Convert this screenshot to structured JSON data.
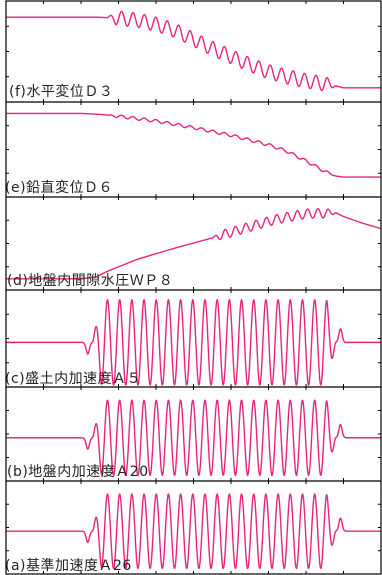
{
  "chart_data": [
    {
      "type": "line",
      "panel": "f",
      "label": "(f)水平変位Ｄ３",
      "color": "#e8247c",
      "series": [
        {
          "x": [
            0,
            0.05,
            0.1,
            0.15,
            0.2,
            0.24,
            0.3,
            0.35,
            0.4,
            0.45,
            0.5,
            0.55,
            0.6,
            0.65,
            0.7,
            0.75,
            0.8,
            0.85,
            0.88,
            0.9,
            1.0
          ],
          "values": [
            0.84,
            0.84,
            0.84,
            0.84,
            0.84,
            0.84,
            0.83,
            0.81,
            0.77,
            0.71,
            0.62,
            0.53,
            0.45,
            0.37,
            0.3,
            0.25,
            0.21,
            0.18,
            0.16,
            0.14,
            0.14
          ],
          "osc_amp": 0.07,
          "osc_from": 0.27,
          "osc_to": 0.88,
          "osc_cycles": 20
        }
      ]
    },
    {
      "type": "line",
      "panel": "e",
      "label": "(e)鉛直変位Ｄ６",
      "color": "#e8247c",
      "series": [
        {
          "x": [
            0,
            0.1,
            0.2,
            0.25,
            0.3,
            0.4,
            0.5,
            0.6,
            0.7,
            0.75,
            0.8,
            0.85,
            0.88,
            0.9,
            1.0
          ],
          "values": [
            0.88,
            0.88,
            0.88,
            0.87,
            0.85,
            0.8,
            0.73,
            0.65,
            0.55,
            0.48,
            0.38,
            0.27,
            0.22,
            0.21,
            0.21
          ],
          "osc_amp": 0.015,
          "osc_from": 0.27,
          "osc_to": 0.88,
          "osc_cycles": 20
        }
      ]
    },
    {
      "type": "line",
      "panel": "d",
      "label": "(d)地盤内間隙水圧ＷＰ８",
      "color": "#e8247c",
      "series": [
        {
          "x": [
            0,
            0.2,
            0.24,
            0.27,
            0.35,
            0.45,
            0.55,
            0.65,
            0.72,
            0.8,
            0.88,
            0.9,
            0.95,
            1.0
          ],
          "values": [
            0.12,
            0.12,
            0.14,
            0.2,
            0.33,
            0.45,
            0.56,
            0.68,
            0.76,
            0.82,
            0.83,
            0.79,
            0.72,
            0.66
          ],
          "osc_amp": 0.05,
          "osc_from": 0.55,
          "osc_to": 0.88,
          "osc_cycles": 12
        }
      ]
    },
    {
      "type": "line",
      "panel": "c",
      "label": "(c)盛土内加速度Ａ５",
      "color": "#e8247c",
      "series": [
        {
          "baseline": 0.46,
          "osc_amp": 0.44,
          "osc_from": 0.23,
          "osc_to": 0.88,
          "osc_cycles": 20
        }
      ]
    },
    {
      "type": "line",
      "panel": "b",
      "label": "(b)地盤内加速度Ａ20",
      "color": "#e8247c",
      "series": [
        {
          "baseline": 0.46,
          "osc_amp": 0.4,
          "osc_from": 0.23,
          "osc_to": 0.88,
          "osc_cycles": 20
        }
      ]
    },
    {
      "type": "line",
      "panel": "a",
      "label": "(a)基準加速度Ａ26",
      "color": "#e8247c",
      "series": [
        {
          "baseline": 0.46,
          "osc_amp": 0.4,
          "osc_from": 0.23,
          "osc_to": 0.88,
          "osc_cycles": 20
        }
      ]
    }
  ]
}
